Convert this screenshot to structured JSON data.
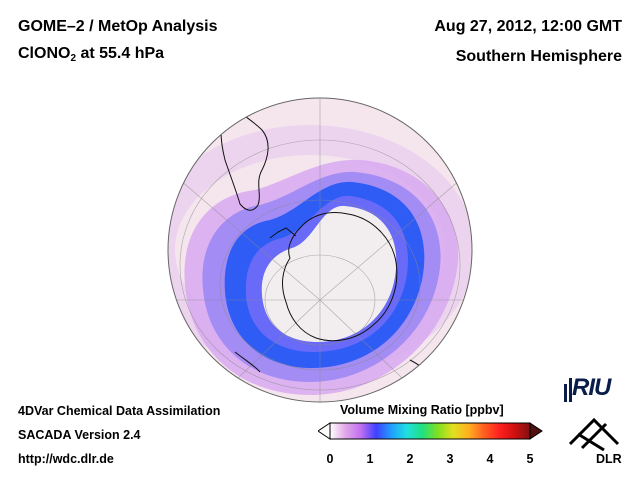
{
  "header": {
    "title_line1": "GOME–2 / MetOp Analysis",
    "species_main": "ClONO",
    "species_sub": "2",
    "species_rest": " at 55.4 hPa",
    "datetime": "Aug 27, 2012, 12:00 GMT",
    "hemisphere": "Southern Hemisphere"
  },
  "footer": {
    "line1": "4DVar Chemical Data Assimilation",
    "line2": "SACADA Version 2.4",
    "line3": "http://wdc.dlr.de"
  },
  "colorbar": {
    "title": "Volume Mixing Ratio [ppbv]",
    "ticks": [
      "0",
      "1",
      "2",
      "3",
      "4",
      "5"
    ],
    "colors": [
      "#ffffff",
      "#e0a8e8",
      "#c070f0",
      "#4040ff",
      "#20a0ff",
      "#20e0e0",
      "#20e080",
      "#80e020",
      "#e0e020",
      "#ffb020",
      "#ff6020",
      "#ff2020",
      "#d01010",
      "#801010"
    ],
    "under_color": "#ffffff",
    "over_color": "#501010"
  },
  "logos": {
    "riu": "RIU",
    "dlr": "DLR"
  },
  "map_colors": {
    "background": "#f5e6ee",
    "ring_light": "#e9c8ee",
    "ring_mid": "#cf9ef0",
    "ring_strong": "#8a78f8",
    "ring_core": "#2f5cf5",
    "polar_cap": "#f2eef0",
    "coast": "#111111"
  }
}
